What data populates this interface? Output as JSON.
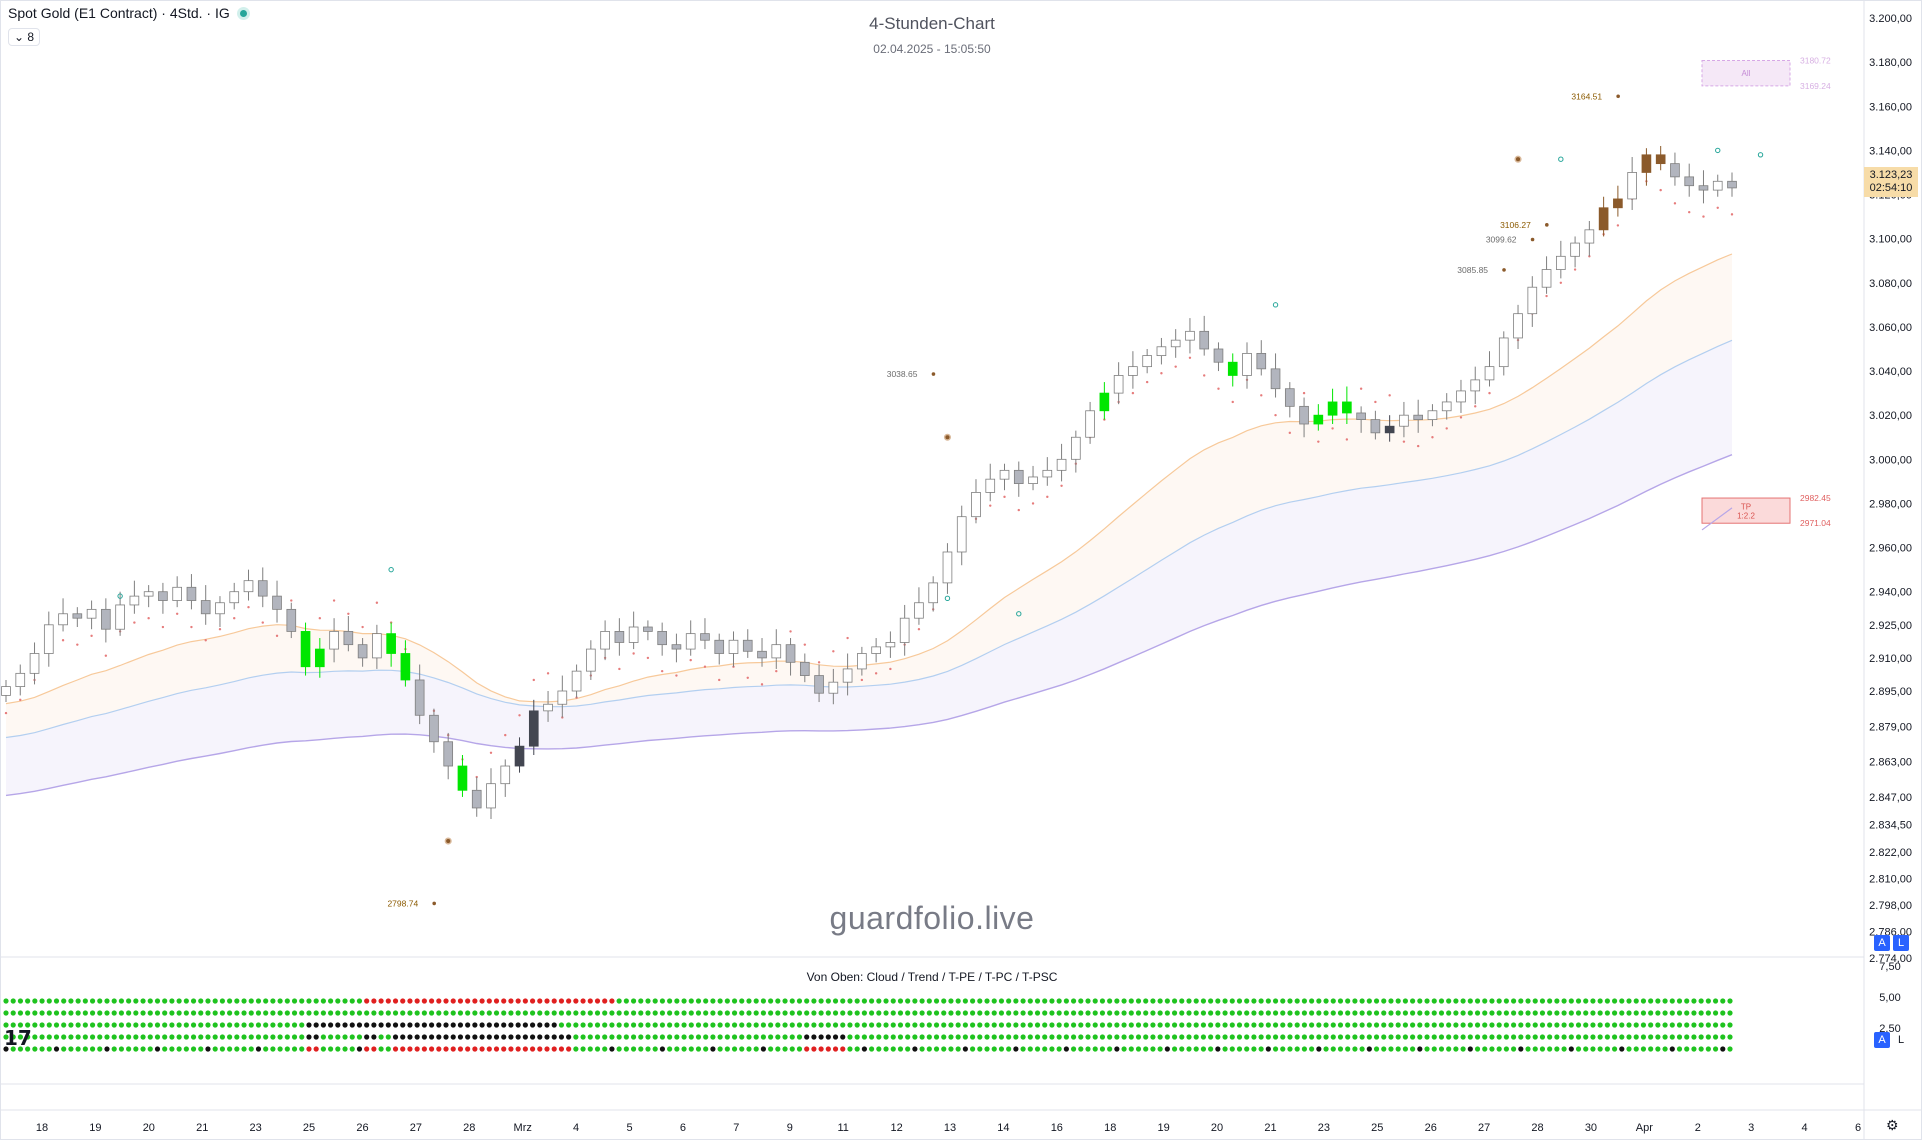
{
  "header": {
    "symbol": "Spot Gold (E1 Contract) · 4Std. · IG",
    "indicator_count": "⌄ 8"
  },
  "title": "4-Stunden-Chart",
  "subtitle": "02.04.2025 - 15:05:50",
  "watermark": "guardfolio.live",
  "price_tag": {
    "price": "3.123,23",
    "countdown": "02:54:10",
    "color": "#f7dca8"
  },
  "scale_badges": {
    "auto": "A",
    "log": "L"
  },
  "oscillator": {
    "title": "Von Oben: Cloud / Trend / T-PE / T-PC / T-PSC",
    "ticks": [
      "7,50",
      "5,00",
      "2,50"
    ]
  },
  "logo": "17",
  "colors": {
    "bull": "#00e600",
    "bear": "#7f7f7f",
    "dark": "#434651",
    "brown": "#8b5a2b",
    "ema_fast": "#f7c99a",
    "ema_mid": "#b3cff0",
    "ema_slow": "#b6a6e8",
    "trail": "#e67c7c",
    "dot_green": "#1fc31f",
    "dot_red": "#e02020",
    "dot_black": "#111111"
  },
  "chart_data": {
    "type": "candlestick",
    "y_axis": {
      "ticks": [
        "3.200,00",
        "3.180,00",
        "3.160,00",
        "3.140,00",
        "3.120,00",
        "3.100,00",
        "3.080,00",
        "3.060,00",
        "3.040,00",
        "3.020,00",
        "3.000,00",
        "2.980,00",
        "2.960,00",
        "2.940,00",
        "2.925,00",
        "2.910,00",
        "2.895,00",
        "2.879,00",
        "2.863,00",
        "2.847,00",
        "2.834,50",
        "2.822,00",
        "2.810,00",
        "2.798,00",
        "2.786,00",
        "2.774,00"
      ],
      "min": 2774,
      "max": 3200
    },
    "x_axis": {
      "ticks": [
        "18",
        "19",
        "20",
        "21",
        "23",
        "25",
        "26",
        "27",
        "28",
        "Mrz",
        "4",
        "5",
        "6",
        "7",
        "9",
        "11",
        "12",
        "13",
        "14",
        "16",
        "18",
        "19",
        "20",
        "21",
        "23",
        "25",
        "26",
        "27",
        "28",
        "30",
        "Apr",
        "2",
        "3",
        "4",
        "6"
      ]
    },
    "close_series": [
      2897,
      2903,
      2912,
      2925,
      2930,
      2928,
      2932,
      2923,
      2934,
      2938,
      2940,
      2936,
      2942,
      2936,
      2930,
      2935,
      2940,
      2945,
      2938,
      2932,
      2922,
      2906,
      2914,
      2922,
      2916,
      2910,
      2921,
      2912,
      2900,
      2884,
      2872,
      2861,
      2850,
      2842,
      2853,
      2861,
      2870,
      2886,
      2889,
      2895,
      2904,
      2914,
      2922,
      2917,
      2924,
      2922,
      2916,
      2914,
      2921,
      2918,
      2912,
      2918,
      2913,
      2910,
      2916,
      2908,
      2902,
      2894,
      2899,
      2905,
      2912,
      2915,
      2917,
      2928,
      2935,
      2944,
      2958,
      2974,
      2985,
      2991,
      2995,
      2989,
      2992,
      2995,
      3000,
      3010,
      3022,
      3030,
      3038,
      3042,
      3047,
      3051,
      3054,
      3058,
      3050,
      3044,
      3038,
      3048,
      3041,
      3032,
      3024,
      3016,
      3020,
      3026,
      3021,
      3018,
      3012,
      3015,
      3020,
      3018,
      3022,
      3026,
      3031,
      3036,
      3042,
      3055,
      3066,
      3078,
      3086,
      3092,
      3098,
      3104,
      3114,
      3118,
      3130,
      3138,
      3134,
      3128,
      3124,
      3122,
      3126,
      3123
    ],
    "candles_highlighted": {
      "bull_indices": [
        21,
        22,
        27,
        28,
        32,
        77,
        86,
        92,
        93,
        94
      ],
      "bear_dark_indices": [
        36,
        37,
        97
      ],
      "brown_indices": [
        112,
        113,
        115,
        116
      ]
    },
    "labels": [
      {
        "text": "3164.51",
        "value": 3164.51,
        "x_index": 114
      },
      {
        "text": "3106.27",
        "value": 3106.27,
        "x_index": 109
      },
      {
        "text": "3099.62",
        "value": 3099.62,
        "x_index": 108
      },
      {
        "text": "3085.85",
        "value": 3085.85,
        "x_index": 106
      },
      {
        "text": "3038.65",
        "value": 3038.65,
        "x_index": 66
      },
      {
        "text": "2798.74",
        "value": 2798.74,
        "x_index": 31
      },
      {
        "text": "3180.72",
        "value": 3180.72,
        "x_index": 130
      },
      {
        "text": "3169.24",
        "value": 3169.24,
        "x_index": 130
      },
      {
        "text": "2982.45",
        "value": 2982.45,
        "x_index": 130
      },
      {
        "text": "2971.04",
        "value": 2971.04,
        "x_index": 130
      }
    ],
    "zones": [
      {
        "label": "All",
        "top": 3180.72,
        "bottom": 3169.24,
        "color": "#e1bee7"
      },
      {
        "label": "TP",
        "label2": "1:2.2",
        "top": 2982.45,
        "bottom": 2971.04,
        "color": "#f8bbbb"
      }
    ],
    "legend": "none",
    "grid": false
  }
}
